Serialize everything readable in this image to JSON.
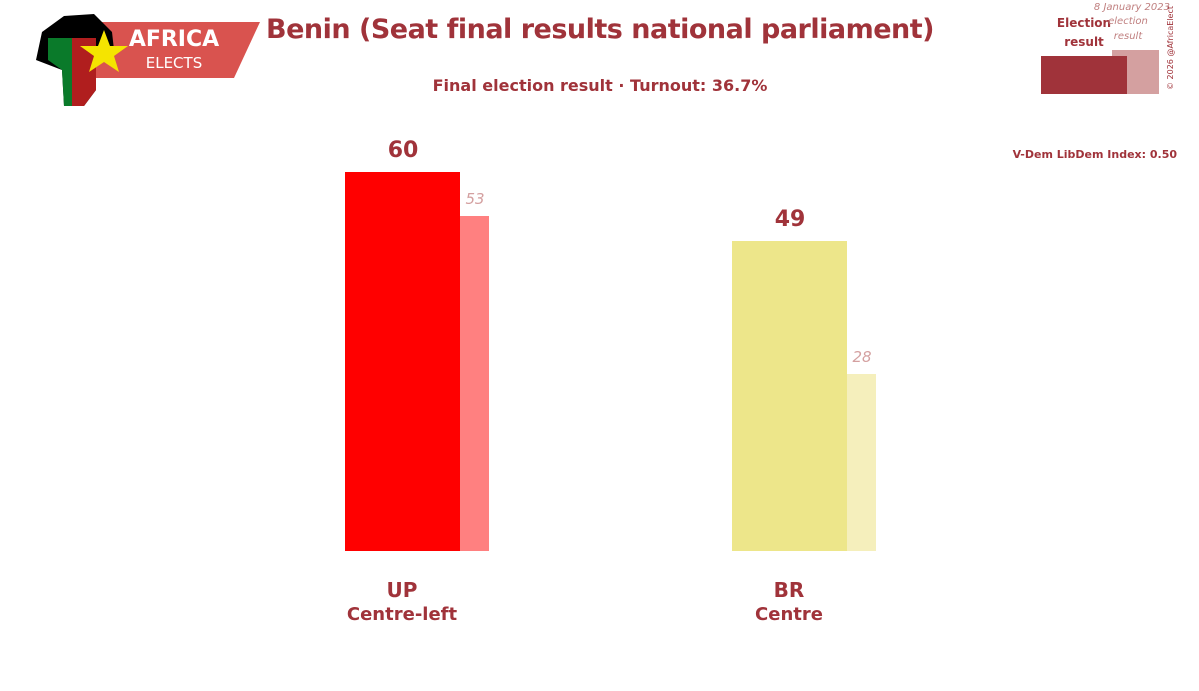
{
  "logo": {
    "text": "AFRICA",
    "subtext": "ELECTS"
  },
  "date": "8 January 2023",
  "credit": "© 2026 @AfricaElect",
  "note": "V-Dem LibDem Index: 0.50",
  "chart_data": {
    "type": "bar",
    "title": "Benin (Seat final results national parliament)",
    "subtitle": "Final election result · Turnout: 36.7%",
    "categories": [
      "UP",
      "BR"
    ],
    "category_subtitles": [
      "Centre-left",
      "Centre"
    ],
    "series": [
      {
        "name": "Election result",
        "color": "#a0333a",
        "colors": [
          "#ff0000",
          "#ede68a"
        ],
        "values": [
          60,
          49
        ]
      },
      {
        "name": "election result",
        "color": "#d4a0a0",
        "colors": [
          "#ff8080",
          "#f5efbc"
        ],
        "values": [
          53,
          28
        ]
      }
    ]
  }
}
